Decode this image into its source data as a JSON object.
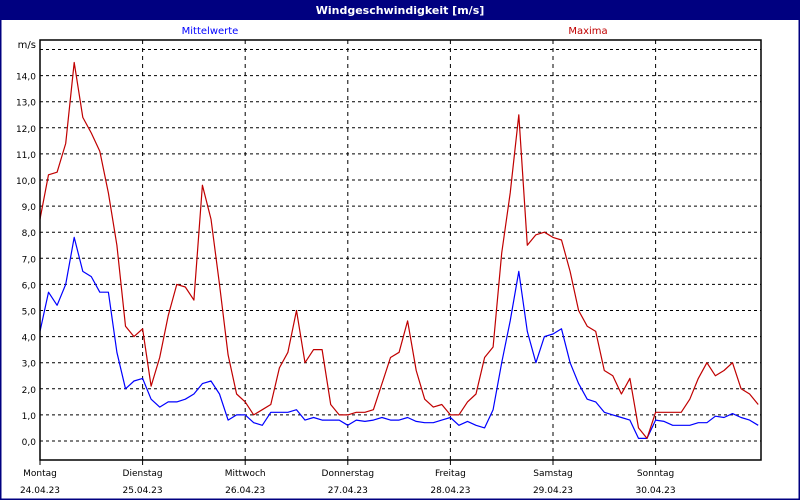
{
  "window": {
    "title": "Windgeschwindigkeit [m/s]"
  },
  "colors": {
    "title_bar": "#000080",
    "mean": "#0000ff",
    "max": "#c00000",
    "grid": "#000000"
  },
  "chart_data": {
    "type": "line",
    "title": "Windgeschwindigkeit [m/s]",
    "ylabel": "m/s",
    "ylim": [
      0,
      15
    ],
    "yticks": [
      "0,0",
      "1,0",
      "2,0",
      "3,0",
      "4,0",
      "5,0",
      "6,0",
      "7,0",
      "8,0",
      "9,0",
      "10,0",
      "11,0",
      "12,0",
      "13,0",
      "14,0"
    ],
    "grid": true,
    "legend_placement": "top",
    "x_start": "24.04.23 00:00",
    "x_interval": "2h",
    "x_ticks": [
      {
        "day": "Montag",
        "date": "24.04.23"
      },
      {
        "day": "Dienstag",
        "date": "25.04.23"
      },
      {
        "day": "Mittwoch",
        "date": "26.04.23"
      },
      {
        "day": "Donnerstag",
        "date": "27.04.23"
      },
      {
        "day": "Freitag",
        "date": "28.04.23"
      },
      {
        "day": "Samstag",
        "date": "29.04.23"
      },
      {
        "day": "Sonntag",
        "date": "30.04.23"
      }
    ],
    "series": [
      {
        "name": "Mittelwerte",
        "color": "#0000ff",
        "values": [
          4.2,
          5.7,
          5.2,
          6.0,
          7.8,
          6.5,
          6.3,
          5.7,
          5.7,
          3.4,
          2.0,
          2.3,
          2.4,
          1.6,
          1.3,
          1.5,
          1.5,
          1.6,
          1.8,
          2.2,
          2.3,
          1.8,
          0.8,
          1.0,
          1.0,
          0.7,
          0.6,
          1.1,
          1.1,
          1.1,
          1.2,
          0.8,
          0.9,
          0.8,
          0.8,
          0.8,
          0.6,
          0.8,
          0.75,
          0.8,
          0.9,
          0.8,
          0.8,
          0.9,
          0.75,
          0.7,
          0.7,
          0.8,
          0.9,
          0.6,
          0.75,
          0.6,
          0.5,
          1.2,
          3.0,
          4.6,
          6.5,
          4.2,
          3.0,
          4.0,
          4.1,
          4.3,
          3.0,
          2.2,
          1.6,
          1.5,
          1.1,
          1.0,
          0.9,
          0.8,
          0.1,
          0.1,
          0.8,
          0.75,
          0.6,
          0.6,
          0.6,
          0.7,
          0.7,
          0.95,
          0.9,
          1.05,
          0.9,
          0.8,
          0.6
        ]
      },
      {
        "name": "Maxima",
        "color": "#c00000",
        "values": [
          8.5,
          10.2,
          10.3,
          11.4,
          14.5,
          12.4,
          11.8,
          11.1,
          9.5,
          7.5,
          4.4,
          4.0,
          4.3,
          2.1,
          3.2,
          4.8,
          6.0,
          5.9,
          5.4,
          9.8,
          8.5,
          6.0,
          3.3,
          1.8,
          1.5,
          1.0,
          1.2,
          1.4,
          2.8,
          3.4,
          5.0,
          3.0,
          3.5,
          3.5,
          1.4,
          1.0,
          1.0,
          1.1,
          1.1,
          1.2,
          2.2,
          3.2,
          3.4,
          4.6,
          2.7,
          1.6,
          1.3,
          1.4,
          1.0,
          1.0,
          1.5,
          1.8,
          3.2,
          3.6,
          7.2,
          9.5,
          12.5,
          7.5,
          7.9,
          8.0,
          7.8,
          7.7,
          6.5,
          5.0,
          4.4,
          4.2,
          2.7,
          2.5,
          1.8,
          2.4,
          0.5,
          0.1,
          1.1,
          1.1,
          1.1,
          1.1,
          1.6,
          2.4,
          3.0,
          2.5,
          2.7,
          3.0,
          2.0,
          1.8,
          1.4
        ]
      }
    ]
  }
}
